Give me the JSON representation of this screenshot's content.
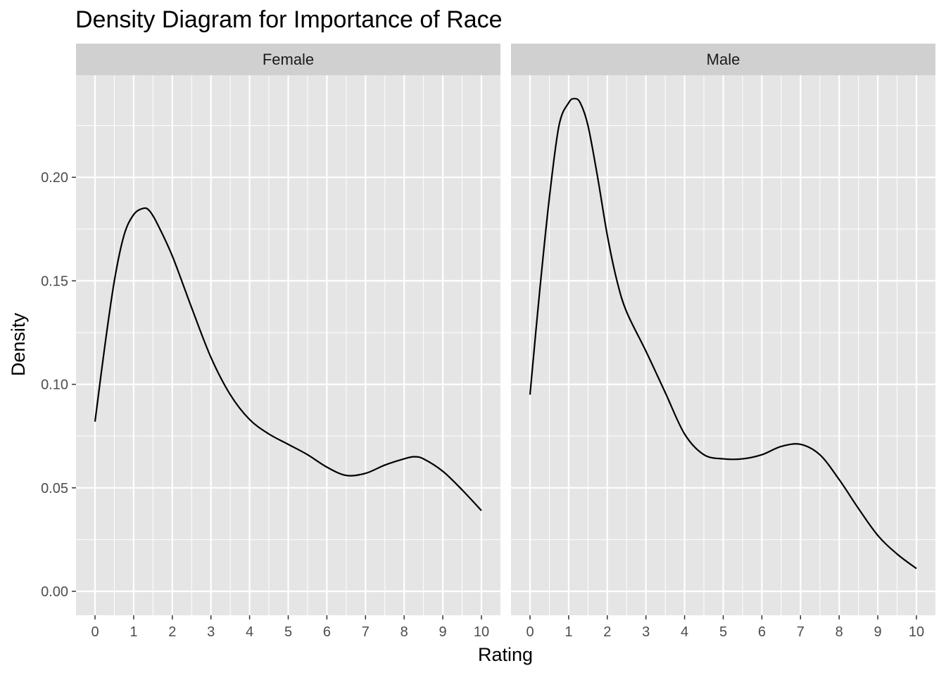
{
  "chart_data": {
    "type": "line",
    "title": "Density Diagram for Importance of Race",
    "xlabel": "Rating",
    "ylabel": "Density",
    "xlim": [
      0,
      10
    ],
    "ylim": [
      0,
      0.25
    ],
    "x_ticks": [
      "0",
      "1",
      "2",
      "3",
      "4",
      "5",
      "6",
      "7",
      "8",
      "9",
      "10"
    ],
    "y_ticks": [
      "0.00",
      "0.05",
      "0.10",
      "0.15",
      "0.20"
    ],
    "grid": true,
    "legend": "none",
    "colors": {
      "panel_bg": "#e5e5e5",
      "strip_bg": "#d0d0d0",
      "grid": "#ffffff",
      "line": "#000000"
    },
    "panels": [
      {
        "name": "Female",
        "x": [
          0,
          0.25,
          0.5,
          0.75,
          1,
          1.25,
          1.4,
          1.6,
          2,
          2.5,
          3,
          3.5,
          4,
          4.5,
          5,
          5.5,
          6,
          6.5,
          7,
          7.5,
          8,
          8.25,
          8.5,
          9,
          9.5,
          10
        ],
        "y": [
          0.082,
          0.118,
          0.15,
          0.172,
          0.182,
          0.185,
          0.184,
          0.178,
          0.162,
          0.137,
          0.113,
          0.095,
          0.083,
          0.076,
          0.071,
          0.066,
          0.06,
          0.056,
          0.057,
          0.061,
          0.064,
          0.065,
          0.064,
          0.058,
          0.049,
          0.039
        ]
      },
      {
        "name": "Male",
        "x": [
          0,
          0.25,
          0.5,
          0.75,
          1,
          1.15,
          1.3,
          1.5,
          1.75,
          2,
          2.25,
          2.5,
          3,
          3.5,
          4,
          4.5,
          5,
          5.5,
          6,
          6.5,
          7,
          7.5,
          8,
          8.5,
          9,
          9.5,
          10
        ],
        "y": [
          0.095,
          0.145,
          0.19,
          0.225,
          0.236,
          0.238,
          0.236,
          0.225,
          0.2,
          0.172,
          0.15,
          0.135,
          0.116,
          0.096,
          0.076,
          0.066,
          0.064,
          0.064,
          0.066,
          0.07,
          0.071,
          0.066,
          0.054,
          0.04,
          0.027,
          0.018,
          0.011
        ]
      }
    ]
  }
}
